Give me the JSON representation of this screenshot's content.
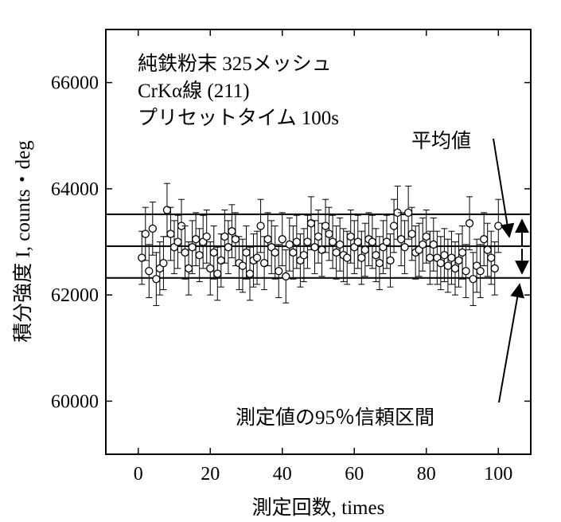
{
  "chart_data": {
    "type": "scatter",
    "xlabel": "測定回数, times",
    "ylabel": "積分強度 I, counts・deg",
    "xlim": [
      -9,
      109
    ],
    "ylim": [
      59000,
      67000
    ],
    "x_ticks": [
      0,
      20,
      40,
      60,
      80,
      100
    ],
    "y_ticks": [
      60000,
      62000,
      64000,
      66000
    ],
    "x_tick_labels": [
      "0",
      "20",
      "40",
      "60",
      "80",
      "100"
    ],
    "y_tick_labels": [
      "60000",
      "62000",
      "64000",
      "66000"
    ],
    "grid": false,
    "error_bar": 500,
    "mean": 62920,
    "ci95": [
      62320,
      63520
    ],
    "annotations": {
      "line1": "純鉄粉末 325メッシュ",
      "line2": "CrKα線 (211)",
      "line3": "プリセットタイム 100s",
      "mean_label": "平均値",
      "ci_label": "測定値の95％信頼区間"
    },
    "series": [
      {
        "x": [
          1,
          2,
          3,
          4,
          5,
          6,
          7,
          8,
          9,
          10,
          11,
          12,
          13,
          14,
          15,
          16,
          17,
          18,
          19,
          20,
          21,
          22,
          23,
          24,
          25,
          26,
          27,
          28,
          29,
          30,
          31,
          32,
          33,
          34,
          35,
          36,
          37,
          38,
          39,
          40,
          41,
          42,
          43,
          44,
          45,
          46,
          47,
          48,
          49,
          50,
          51,
          52,
          53,
          54,
          55,
          56,
          57,
          58,
          59,
          60,
          61,
          62,
          63,
          64,
          65,
          66,
          67,
          68,
          69,
          70,
          71,
          72,
          73,
          74,
          75,
          76,
          77,
          78,
          79,
          80,
          81,
          82,
          83,
          84,
          85,
          86,
          87,
          88,
          89,
          90,
          91,
          92,
          93,
          94,
          95,
          96,
          97,
          98,
          99,
          100
        ],
        "y": [
          62700,
          63150,
          62450,
          63250,
          62300,
          62500,
          62600,
          63600,
          63150,
          62900,
          63000,
          63300,
          62800,
          62500,
          62900,
          63050,
          62750,
          63000,
          63100,
          62500,
          62800,
          62400,
          62650,
          63100,
          62900,
          63200,
          63050,
          62600,
          62550,
          62800,
          62400,
          62650,
          62700,
          63300,
          62600,
          63050,
          62900,
          62800,
          62450,
          63050,
          62350,
          62950,
          62800,
          63000,
          62650,
          62750,
          63000,
          63350,
          62900,
          63100,
          62850,
          63300,
          63150,
          63000,
          62800,
          62950,
          62750,
          62700,
          63100,
          62900,
          63000,
          62700,
          62850,
          63050,
          63000,
          62750,
          62600,
          62900,
          63000,
          62650,
          63300,
          63550,
          63050,
          62900,
          63550,
          63150,
          62800,
          62850,
          62950,
          63100,
          62700,
          62950,
          62700,
          62600,
          62750,
          62550,
          62700,
          62500,
          62650,
          62800,
          62450,
          63350,
          62300,
          62550,
          62450,
          63050,
          62850,
          62700,
          62500,
          63300
        ]
      }
    ]
  }
}
